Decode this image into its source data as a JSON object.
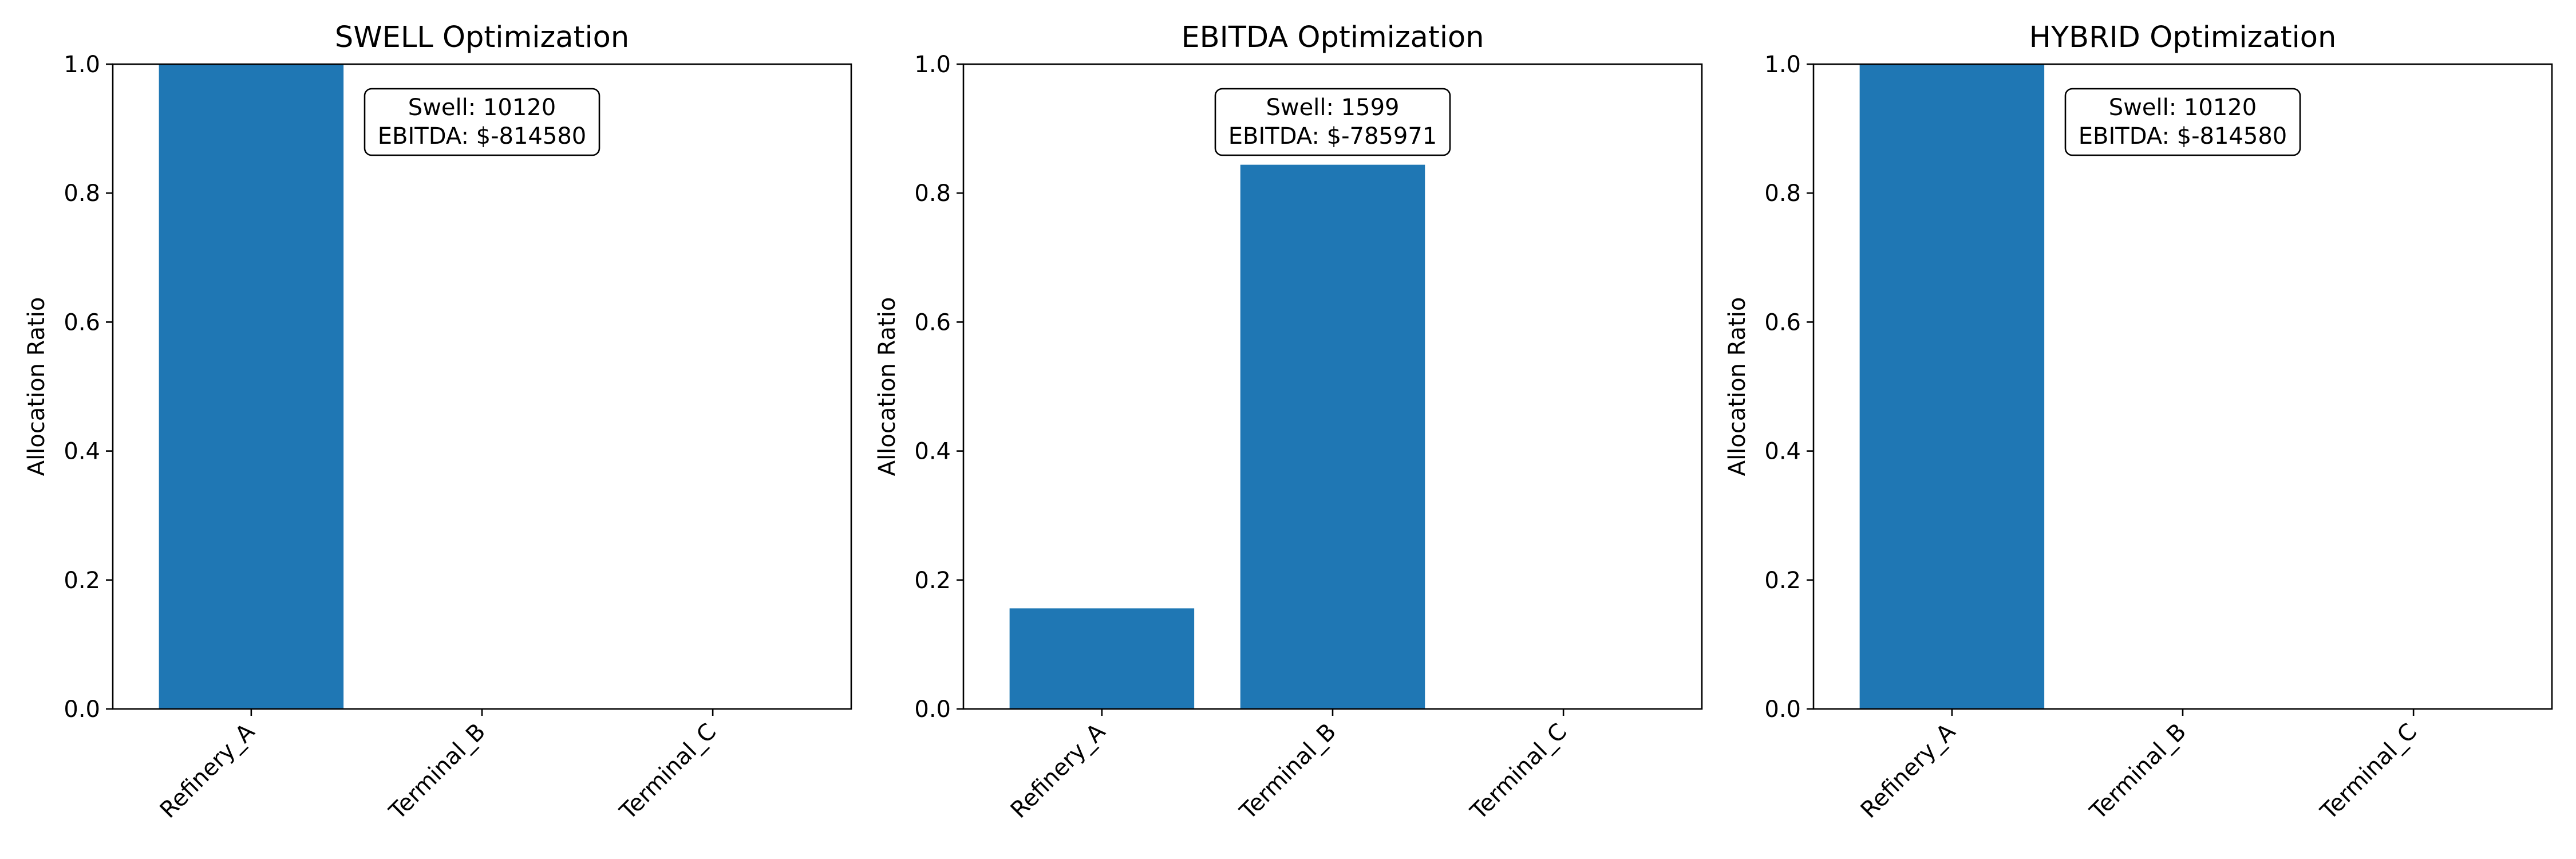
{
  "chart_data": [
    {
      "type": "bar",
      "title": "SWELL Optimization",
      "ylabel": "Allocation Ratio",
      "xlabel": "",
      "categories": [
        "Refinery_A",
        "Terminal_B",
        "Terminal_C"
      ],
      "values": [
        1.0,
        0.0,
        0.0
      ],
      "ylim": [
        0,
        1.0
      ],
      "yticks": [
        "0.0",
        "0.2",
        "0.4",
        "0.6",
        "0.8",
        "1.0"
      ],
      "annotation": [
        "Swell: 10120",
        "EBITDA: $-814580"
      ],
      "bar_color": "#1f77b4",
      "grid": false
    },
    {
      "type": "bar",
      "title": "EBITDA Optimization",
      "ylabel": "Allocation Ratio",
      "xlabel": "",
      "categories": [
        "Refinery_A",
        "Terminal_B",
        "Terminal_C"
      ],
      "values": [
        0.156,
        0.844,
        0.0
      ],
      "ylim": [
        0,
        1.0
      ],
      "yticks": [
        "0.0",
        "0.2",
        "0.4",
        "0.6",
        "0.8",
        "1.0"
      ],
      "annotation": [
        "Swell: 1599",
        "EBITDA: $-785971"
      ],
      "bar_color": "#1f77b4",
      "grid": false
    },
    {
      "type": "bar",
      "title": "HYBRID Optimization",
      "ylabel": "Allocation Ratio",
      "xlabel": "",
      "categories": [
        "Refinery_A",
        "Terminal_B",
        "Terminal_C"
      ],
      "values": [
        1.0,
        0.0,
        0.0
      ],
      "ylim": [
        0,
        1.0
      ],
      "yticks": [
        "0.0",
        "0.2",
        "0.4",
        "0.6",
        "0.8",
        "1.0"
      ],
      "annotation": [
        "Swell: 10120",
        "EBITDA: $-814580"
      ],
      "bar_color": "#1f77b4",
      "grid": false
    }
  ]
}
